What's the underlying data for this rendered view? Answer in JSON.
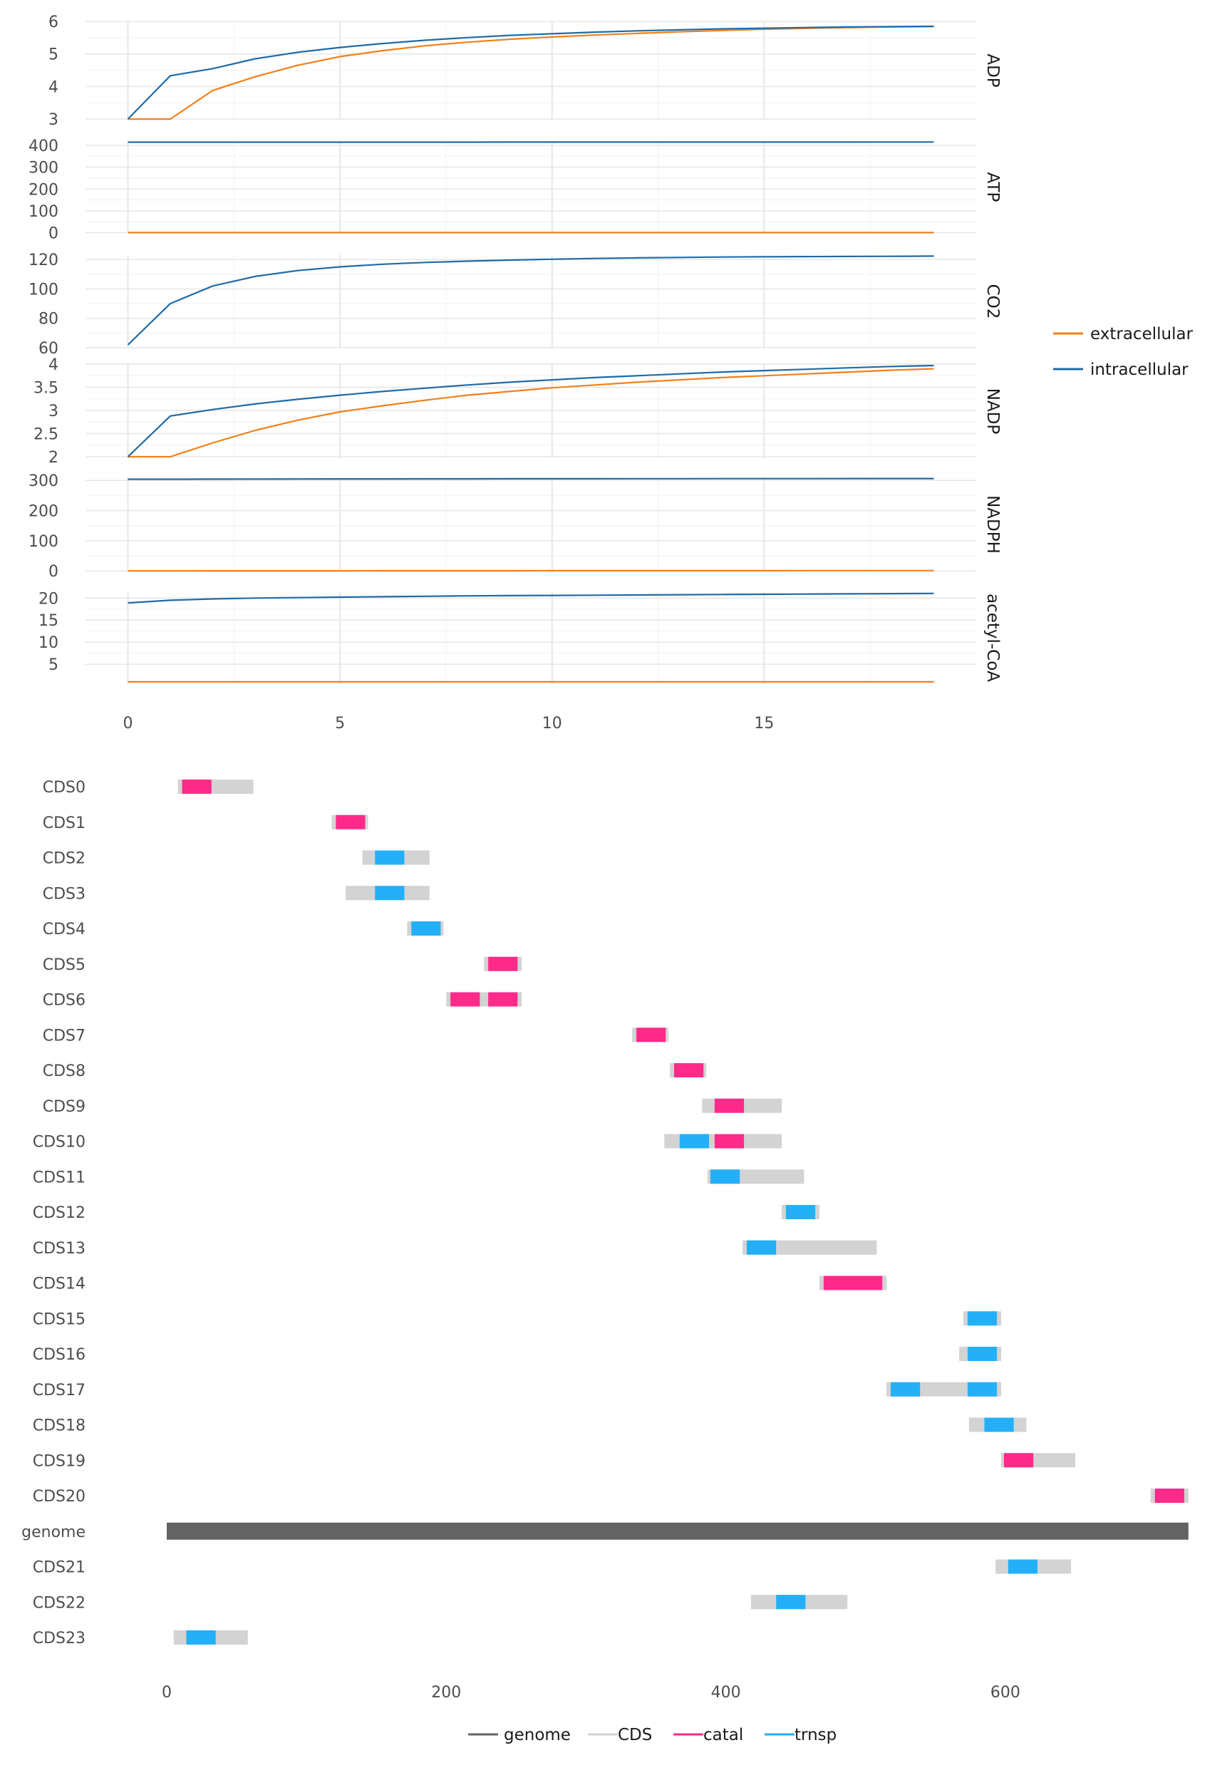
{
  "colors": {
    "extracellular": "#F28019",
    "intracellular": "#1F6BA8",
    "genome": "#636363",
    "CDS": "#D3D3D3",
    "catal": "#FF2A8A",
    "trnsp": "#24B0F8",
    "grid_major": "#E6E6E6",
    "grid_minor": "#F2F2F2",
    "axis_text": "#4D4D4D"
  },
  "chart_data": [
    {
      "type": "line",
      "facet_direction": "vertical",
      "x_ticks": [
        0,
        5,
        10,
        15
      ],
      "xlim": [
        -1,
        20
      ],
      "x": [
        0,
        1,
        2,
        3,
        4,
        5,
        6,
        7,
        8,
        9,
        10,
        11,
        12,
        13,
        14,
        15,
        16,
        17,
        18,
        19
      ],
      "legend": {
        "placement": "right",
        "entries": [
          {
            "key": "extracellular",
            "label": "extracellular"
          },
          {
            "key": "intracellular",
            "label": "intracellular"
          }
        ]
      },
      "panels": [
        {
          "label": "ADP",
          "ylim": [
            2.98,
            6.0
          ],
          "y_ticks": [
            {
              "v": 3,
              "t": "3"
            },
            {
              "v": 4,
              "t": "4"
            },
            {
              "v": 5,
              "t": "5"
            },
            {
              "v": 6,
              "t": "6"
            }
          ],
          "series": [
            {
              "key": "extracellular",
              "values": [
                3.0,
                3.0,
                3.88,
                4.3,
                4.65,
                4.92,
                5.1,
                5.25,
                5.36,
                5.45,
                5.52,
                5.58,
                5.63,
                5.68,
                5.72,
                5.76,
                5.79,
                5.81,
                5.83,
                5.84
              ]
            },
            {
              "key": "intracellular",
              "values": [
                3.0,
                4.33,
                4.55,
                4.85,
                5.05,
                5.2,
                5.32,
                5.42,
                5.5,
                5.57,
                5.62,
                5.67,
                5.71,
                5.74,
                5.77,
                5.79,
                5.81,
                5.83,
                5.84,
                5.85
              ]
            }
          ]
        },
        {
          "label": "ATP",
          "ylim": [
            -2,
            420
          ],
          "y_ticks": [
            {
              "v": 0,
              "t": "0"
            },
            {
              "v": 100,
              "t": "100"
            },
            {
              "v": 200,
              "t": "200"
            },
            {
              "v": 300,
              "t": "300"
            },
            {
              "v": 400,
              "t": "400"
            }
          ],
          "series": [
            {
              "key": "extracellular",
              "values": [
                0.0,
                0.0,
                0.0,
                0.0,
                0.0,
                0.0,
                0.0,
                0.0,
                0.0,
                0.0,
                0.0,
                0.0,
                0.0,
                0.0,
                0.0,
                0.0,
                0.0,
                0.0,
                0.0,
                0.0
              ]
            },
            {
              "key": "intracellular",
              "values": [
                415.0,
                415.0,
                415.0,
                415.1,
                415.1,
                415.1,
                415.2,
                415.2,
                415.2,
                415.3,
                415.3,
                415.3,
                415.4,
                415.4,
                415.4,
                415.5,
                415.5,
                415.5,
                415.6,
                415.6
              ]
            }
          ]
        },
        {
          "label": "CO2",
          "ylim": [
            60,
            123
          ],
          "y_ticks": [
            {
              "v": 60,
              "t": "60"
            },
            {
              "v": 80,
              "t": "80"
            },
            {
              "v": 100,
              "t": "100"
            },
            {
              "v": 120,
              "t": "120"
            }
          ],
          "series": [
            {
              "key": "intracellular",
              "values": [
                62.0,
                90.0,
                102.0,
                108.5,
                112.5,
                115.0,
                116.8,
                118.0,
                118.9,
                119.6,
                120.2,
                120.7,
                121.1,
                121.4,
                121.7,
                121.9,
                122.0,
                122.1,
                122.2,
                122.3
              ]
            }
          ]
        },
        {
          "label": "NADP",
          "ylim": [
            1.97,
            4.0
          ],
          "y_ticks": [
            {
              "v": 2,
              "t": "2"
            },
            {
              "v": 2.5,
              "t": "2.5"
            },
            {
              "v": 3,
              "t": "3"
            },
            {
              "v": 3.5,
              "t": "3.5"
            },
            {
              "v": 4,
              "t": "4"
            }
          ],
          "series": [
            {
              "key": "extracellular",
              "values": [
                2.0,
                2.0,
                2.3,
                2.57,
                2.79,
                2.97,
                3.1,
                3.22,
                3.33,
                3.41,
                3.49,
                3.55,
                3.61,
                3.66,
                3.71,
                3.75,
                3.79,
                3.83,
                3.87,
                3.9
              ]
            },
            {
              "key": "intracellular",
              "values": [
                2.0,
                2.88,
                3.02,
                3.14,
                3.24,
                3.33,
                3.41,
                3.48,
                3.55,
                3.61,
                3.66,
                3.71,
                3.75,
                3.79,
                3.83,
                3.86,
                3.89,
                3.92,
                3.95,
                3.97
              ]
            }
          ]
        },
        {
          "label": "NADPH",
          "ylim": [
            -2,
            310
          ],
          "y_ticks": [
            {
              "v": 0,
              "t": "0"
            },
            {
              "v": 100,
              "t": "100"
            },
            {
              "v": 200,
              "t": "200"
            },
            {
              "v": 300,
              "t": "300"
            }
          ],
          "series": [
            {
              "key": "extracellular",
              "values": [
                0.0,
                0.0,
                0.1,
                0.1,
                0.2,
                0.2,
                0.3,
                0.3,
                0.4,
                0.4,
                0.5,
                0.5,
                0.6,
                0.6,
                0.7,
                0.7,
                0.8,
                0.8,
                0.9,
                0.9
              ]
            },
            {
              "key": "intracellular",
              "values": [
                304.0,
                304.2,
                304.4,
                304.6,
                304.8,
                305.0,
                305.1,
                305.2,
                305.3,
                305.4,
                305.5,
                305.6,
                305.7,
                305.8,
                305.9,
                306.0,
                306.0,
                306.1,
                306.1,
                306.2
              ]
            }
          ]
        },
        {
          "label": "acetyl-CoA",
          "ylim": [
            0.5,
            21.5
          ],
          "y_ticks": [
            {
              "v": 5,
              "t": "5"
            },
            {
              "v": 10,
              "t": "10"
            },
            {
              "v": 15,
              "t": "15"
            },
            {
              "v": 20,
              "t": "20"
            }
          ],
          "series": [
            {
              "key": "extracellular",
              "values": [
                1.0,
                1.0,
                1.0,
                1.0,
                1.0,
                1.0,
                1.0,
                1.0,
                1.0,
                1.0,
                1.0,
                1.0,
                1.0,
                1.0,
                1.0,
                1.0,
                1.0,
                1.0,
                1.0,
                1.0
              ]
            },
            {
              "key": "intracellular",
              "values": [
                18.9,
                19.5,
                19.8,
                20.0,
                20.1,
                20.2,
                20.3,
                20.4,
                20.5,
                20.55,
                20.6,
                20.65,
                20.7,
                20.75,
                20.8,
                20.85,
                20.9,
                20.95,
                21.0,
                21.05
              ]
            }
          ]
        }
      ]
    },
    {
      "type": "segment",
      "xlim": [
        -30,
        735
      ],
      "x_ticks": [
        0,
        200,
        400,
        600
      ],
      "legend": {
        "placement": "bottom",
        "entries": [
          {
            "key": "genome",
            "label": "genome"
          },
          {
            "key": "CDS",
            "label": "CDS"
          },
          {
            "key": "catal",
            "label": "catal"
          },
          {
            "key": "trnsp",
            "label": "trnsp"
          }
        ]
      },
      "rows": [
        {
          "label": "CDS0",
          "cds": [
            8,
            62
          ],
          "domains": [
            {
              "type": "catal",
              "range": [
                11,
                32
              ]
            }
          ]
        },
        {
          "label": "CDS1",
          "cds": [
            118,
            144
          ],
          "domains": [
            {
              "type": "catal",
              "range": [
                121,
                142
              ]
            }
          ]
        },
        {
          "label": "CDS2",
          "cds": [
            140,
            188
          ],
          "domains": [
            {
              "type": "trnsp",
              "range": [
                149,
                170
              ]
            }
          ]
        },
        {
          "label": "CDS3",
          "cds": [
            128,
            188
          ],
          "domains": [
            {
              "type": "trnsp",
              "range": [
                149,
                170
              ]
            }
          ]
        },
        {
          "label": "CDS4",
          "cds": [
            172,
            198
          ],
          "domains": [
            {
              "type": "trnsp",
              "range": [
                175,
                196
              ]
            }
          ]
        },
        {
          "label": "CDS5",
          "cds": [
            227,
            254
          ],
          "domains": [
            {
              "type": "catal",
              "range": [
                230,
                251
              ]
            }
          ]
        },
        {
          "label": "CDS6",
          "cds": [
            200,
            254
          ],
          "domains": [
            {
              "type": "catal",
              "range": [
                203,
                224
              ]
            },
            {
              "type": "catal",
              "range": [
                230,
                251
              ]
            }
          ]
        },
        {
          "label": "CDS7",
          "cds": [
            333,
            359
          ],
          "domains": [
            {
              "type": "catal",
              "range": [
                336,
                357
              ]
            }
          ]
        },
        {
          "label": "CDS8",
          "cds": [
            360,
            386
          ],
          "domains": [
            {
              "type": "catal",
              "range": [
                363,
                384
              ]
            }
          ]
        },
        {
          "label": "CDS9",
          "cds": [
            383,
            440
          ],
          "domains": [
            {
              "type": "catal",
              "range": [
                392,
                413
              ]
            }
          ]
        },
        {
          "label": "CDS10",
          "cds": [
            356,
            440
          ],
          "domains": [
            {
              "type": "trnsp",
              "range": [
                367,
                388
              ]
            },
            {
              "type": "catal",
              "range": [
                392,
                413
              ]
            }
          ]
        },
        {
          "label": "CDS11",
          "cds": [
            387,
            456
          ],
          "domains": [
            {
              "type": "trnsp",
              "range": [
                389,
                410
              ]
            }
          ]
        },
        {
          "label": "CDS12",
          "cds": [
            440,
            467
          ],
          "domains": [
            {
              "type": "trnsp",
              "range": [
                443,
                464
              ]
            }
          ]
        },
        {
          "label": "CDS13",
          "cds": [
            412,
            508
          ],
          "domains": [
            {
              "type": "trnsp",
              "range": [
                415,
                436
              ]
            }
          ]
        },
        {
          "label": "CDS14",
          "cds": [
            467,
            515
          ],
          "domains": [
            {
              "type": "catal",
              "range": [
                470,
                512
              ]
            }
          ]
        },
        {
          "label": "CDS15",
          "cds": [
            570,
            597
          ],
          "domains": [
            {
              "type": "trnsp",
              "range": [
                573,
                594
              ]
            }
          ]
        },
        {
          "label": "CDS16",
          "cds": [
            567,
            597
          ],
          "domains": [
            {
              "type": "trnsp",
              "range": [
                573,
                594
              ]
            }
          ]
        },
        {
          "label": "CDS17",
          "cds": [
            515,
            597
          ],
          "domains": [
            {
              "type": "trnsp",
              "range": [
                518,
                539
              ]
            },
            {
              "type": "trnsp",
              "range": [
                573,
                594
              ]
            }
          ]
        },
        {
          "label": "CDS18",
          "cds": [
            574,
            615
          ],
          "domains": [
            {
              "type": "trnsp",
              "range": [
                585,
                606
              ]
            }
          ]
        },
        {
          "label": "CDS19",
          "cds": [
            597,
            650
          ],
          "domains": [
            {
              "type": "catal",
              "range": [
                599,
                620
              ]
            }
          ]
        },
        {
          "label": "CDS20",
          "cds": [
            704,
            731
          ],
          "domains": [
            {
              "type": "catal",
              "range": [
                707,
                728
              ]
            }
          ]
        },
        {
          "label": "genome",
          "genome": [
            0,
            731
          ]
        },
        {
          "label": "CDS21",
          "cds": [
            593,
            647
          ],
          "domains": [
            {
              "type": "trnsp",
              "range": [
                602,
                623
              ]
            }
          ]
        },
        {
          "label": "CDS22",
          "cds": [
            418,
            487
          ],
          "domains": [
            {
              "type": "trnsp",
              "range": [
                436,
                457
              ]
            }
          ]
        },
        {
          "label": "CDS23",
          "cds": [
            5,
            58
          ],
          "domains": [
            {
              "type": "trnsp",
              "range": [
                14,
                35
              ]
            }
          ]
        }
      ]
    }
  ]
}
